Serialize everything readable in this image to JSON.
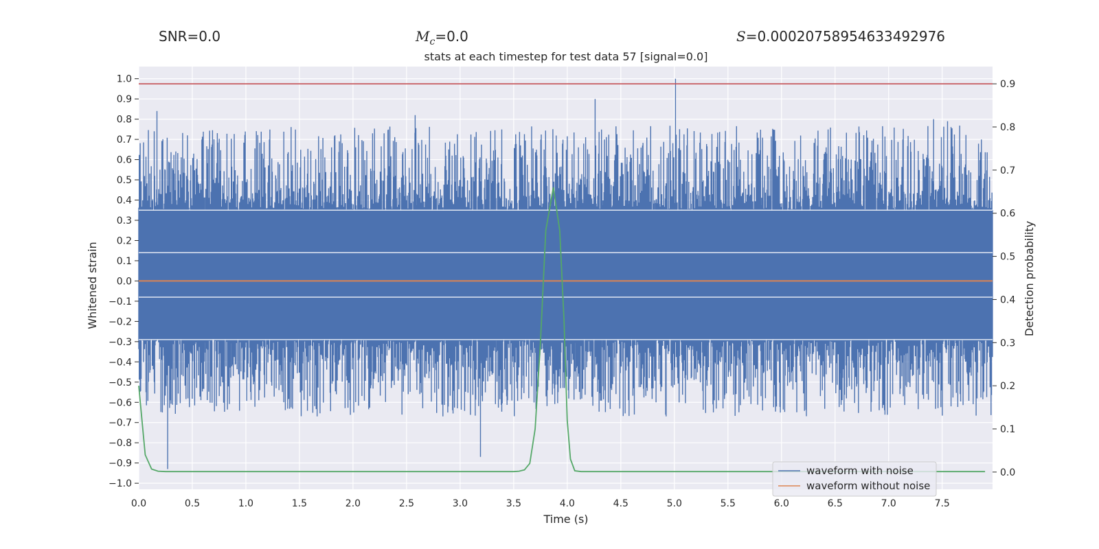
{
  "header": {
    "snr_label": "SNR=0.0",
    "mc_symbol": "M",
    "mc_subscript": "c",
    "mc_value": "=0.0",
    "s_symbol": "S",
    "s_value": "=0.00020758954633492976"
  },
  "colors": {
    "background": "#eaeaf2",
    "grid": "#ffffff",
    "noise": "#4c72b0",
    "clean": "#dd8452",
    "probability": "#55a868",
    "threshold": "#c44e52"
  },
  "chart_data": {
    "type": "line",
    "title": "stats at each timestep for test data 57 [signal=0.0]",
    "xlabel": "Time (s)",
    "ylabel": "Whitened strain",
    "y2label": "Detection probability",
    "xlim": [
      0.0,
      7.97
    ],
    "ylim": [
      -1.03,
      1.06
    ],
    "y2lim": [
      -0.04,
      0.94
    ],
    "xticks": [
      0.0,
      0.5,
      1.0,
      1.5,
      2.0,
      2.5,
      3.0,
      3.5,
      4.0,
      4.5,
      5.0,
      5.5,
      6.0,
      6.5,
      7.0,
      7.5
    ],
    "xtick_labels": [
      "0.0",
      "0.5",
      "1.0",
      "1.5",
      "2.0",
      "2.5",
      "3.0",
      "3.5",
      "4.0",
      "4.5",
      "5.0",
      "5.5",
      "6.0",
      "6.5",
      "7.0",
      "7.5"
    ],
    "yticks": [
      1.0,
      0.9,
      0.8,
      0.7,
      0.6,
      0.5,
      0.4,
      0.3,
      0.2,
      0.1,
      0.0,
      -0.1,
      -0.2,
      -0.3,
      -0.4,
      -0.5,
      -0.6,
      -0.7,
      -0.8,
      -0.9,
      -1.0
    ],
    "ytick_labels": [
      "1.0",
      "0.9",
      "0.8",
      "0.7",
      "0.6",
      "0.5",
      "0.4",
      "0.3",
      "0.2",
      "0.1",
      "0.0",
      "−0.1",
      "−0.2",
      "−0.3",
      "−0.4",
      "−0.5",
      "−0.6",
      "−0.7",
      "−0.8",
      "−0.9",
      "−1.0"
    ],
    "y2ticks": [
      0.9,
      0.8,
      0.7,
      0.6,
      0.5,
      0.4,
      0.3,
      0.2,
      0.1,
      0.0
    ],
    "y2tick_labels": [
      "0.9",
      "0.8",
      "0.7",
      "0.6",
      "0.5",
      "0.4",
      "0.3",
      "0.2",
      "0.1",
      "0.0"
    ],
    "threshold_y2": 0.9,
    "series": [
      {
        "name": "waveform with noise",
        "axis": "left",
        "style": "noise-band",
        "band_upper": 0.35,
        "band_lower": -0.29,
        "peak_max": 1.0,
        "peak_min": -0.93,
        "notable_peaks": [
          [
            0.17,
            0.84
          ],
          [
            0.27,
            -0.93
          ],
          [
            2.58,
            0.82
          ],
          [
            3.19,
            -0.87
          ],
          [
            4.26,
            0.9
          ],
          [
            5.01,
            1.0
          ],
          [
            7.42,
            0.8
          ],
          [
            7.55,
            0.79
          ]
        ]
      },
      {
        "name": "waveform without noise",
        "axis": "left",
        "x": [
          0.0,
          7.97
        ],
        "y": [
          0.0,
          0.0
        ]
      },
      {
        "name": "detection probability",
        "axis": "right",
        "x": [
          0.0,
          0.06,
          0.12,
          0.18,
          0.25,
          0.3,
          0.5,
          1.0,
          2.0,
          3.0,
          3.4,
          3.5,
          3.55,
          3.6,
          3.65,
          3.7,
          3.75,
          3.8,
          3.87,
          3.93,
          3.97,
          4.0,
          4.03,
          4.07,
          4.13,
          4.2,
          5.0,
          6.0,
          7.0,
          7.9
        ],
        "y": [
          0.2,
          0.04,
          0.007,
          0.002,
          0.001,
          0.001,
          0.001,
          0.001,
          0.001,
          0.001,
          0.001,
          0.001,
          0.002,
          0.005,
          0.02,
          0.1,
          0.3,
          0.56,
          0.66,
          0.56,
          0.35,
          0.12,
          0.03,
          0.003,
          0.001,
          0.001,
          0.001,
          0.001,
          0.001,
          0.001
        ]
      }
    ],
    "legend": {
      "location": "lower-right",
      "entries": [
        "waveform with noise",
        "waveform without noise"
      ]
    }
  }
}
